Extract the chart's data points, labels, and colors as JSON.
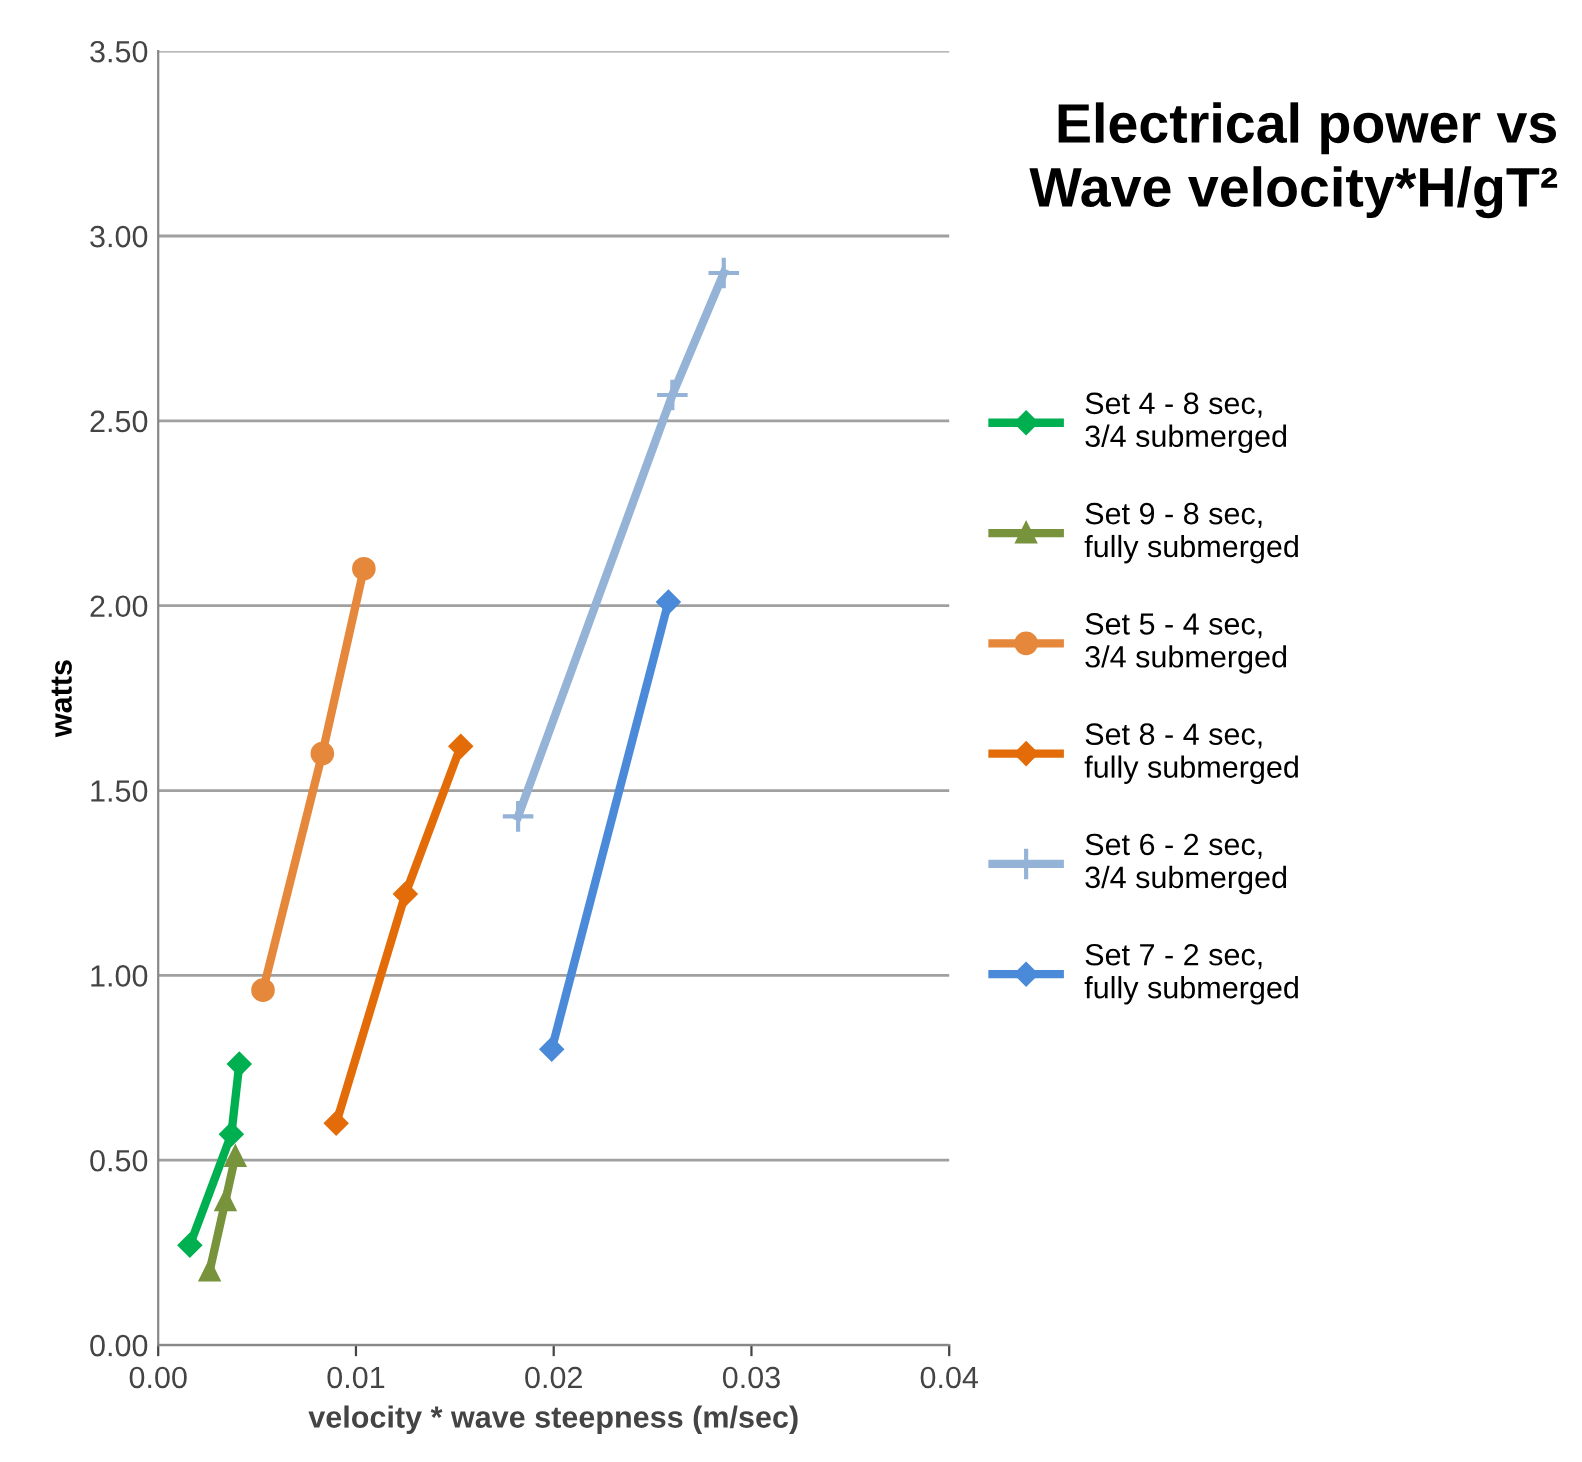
{
  "chart_data": {
    "type": "line",
    "title": "Electrical power vs\nWave velocity*H/gT²",
    "xlabel": "velocity * wave steepness (m/sec)",
    "ylabel": "watts",
    "xlim": [
      0,
      0.04
    ],
    "xticks": [
      {
        "value": 0,
        "label": "0.00"
      },
      {
        "value": 0.01,
        "label": "0.01"
      },
      {
        "value": 0.02,
        "label": "0.02"
      },
      {
        "value": 0.03,
        "label": "0.03"
      },
      {
        "value": 0.04,
        "label": "0.04"
      }
    ],
    "ylim": [
      0,
      3.5
    ],
    "yticks": [
      {
        "value": 0,
        "label": "0.00"
      },
      {
        "value": 0.5,
        "label": "0.50"
      },
      {
        "value": 1,
        "label": "1.00"
      },
      {
        "value": 1.5,
        "label": "1.50"
      },
      {
        "value": 2,
        "label": "2.00"
      },
      {
        "value": 2.5,
        "label": "2.50"
      },
      {
        "value": 3,
        "label": "3.00"
      },
      {
        "value": 3.5,
        "label": "3.50"
      }
    ],
    "grid": "y",
    "legend": "right",
    "line_style": "solid",
    "series": [
      {
        "name": "Set 4 - 8 sec, 3/4 submerged",
        "color": "#00b050",
        "marker": "diamond",
        "x": [
          0.0016,
          0.0037,
          0.0041
        ],
        "values": [
          0.27,
          0.57,
          0.76
        ]
      },
      {
        "name": "Set 9 - 8 sec, fully submerged",
        "color": "#77933c",
        "marker": "triangle",
        "x": [
          0.0026,
          0.0034,
          0.0039
        ],
        "values": [
          0.2,
          0.39,
          0.51
        ]
      },
      {
        "name": "Set 5 - 4 sec, 3/4 submerged",
        "color": "#e6883c",
        "marker": "circle",
        "x": [
          0.0053,
          0.0083,
          0.0104
        ],
        "values": [
          0.96,
          1.6,
          2.1
        ]
      },
      {
        "name": "Set 8 - 4 sec, fully submerged",
        "color": "#e36c09",
        "marker": "diamond",
        "x": [
          0.009,
          0.0125,
          0.0153
        ],
        "values": [
          0.6,
          1.22,
          1.62
        ]
      },
      {
        "name": "Set 6 - 2 sec, 3/4 submerged",
        "color": "#95b3d7",
        "marker": "cross",
        "x": [
          0.0182,
          0.026,
          0.0286
        ],
        "values": [
          1.43,
          2.57,
          2.9
        ]
      },
      {
        "name": "Set 7 - 2 sec, fully submerged",
        "color": "#4a8ad8",
        "marker": "diamond",
        "x": [
          0.0199,
          0.0258
        ],
        "values": [
          0.8,
          2.01
        ]
      }
    ]
  }
}
